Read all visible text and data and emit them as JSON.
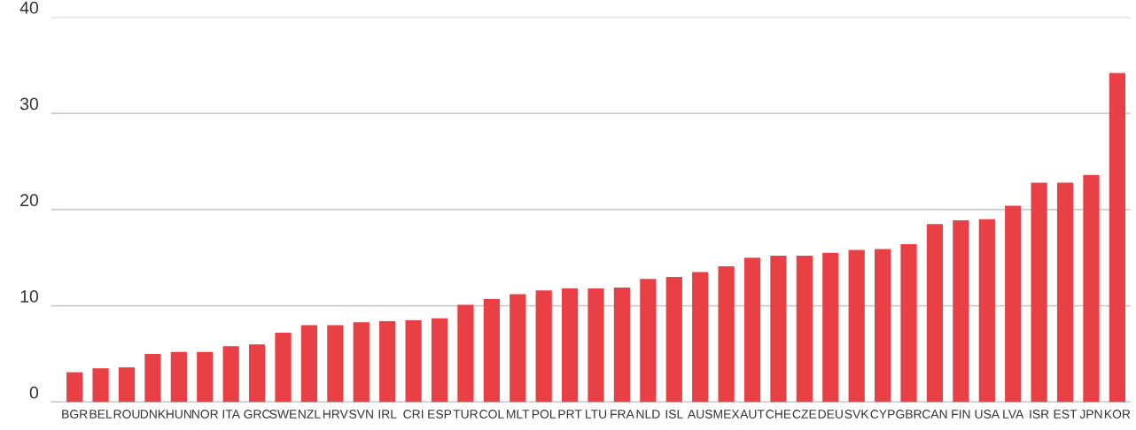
{
  "chart_data": {
    "type": "bar",
    "categories": [
      "BGR",
      "BEL",
      "ROU",
      "DNK",
      "HUN",
      "NOR",
      "ITA",
      "GRC",
      "SWE",
      "NZL",
      "HRV",
      "SVN",
      "IRL",
      "CRI",
      "ESP",
      "TUR",
      "COL",
      "MLT",
      "POL",
      "PRT",
      "LTU",
      "FRA",
      "NLD",
      "ISL",
      "AUS",
      "MEX",
      "AUT",
      "CHE",
      "CZE",
      "DEU",
      "SVK",
      "CYP",
      "GBR",
      "CAN",
      "FIN",
      "USA",
      "LVA",
      "ISR",
      "EST",
      "JPN",
      "KOR"
    ],
    "values": [
      3.1,
      3.5,
      3.6,
      5.0,
      5.2,
      5.2,
      5.8,
      6.0,
      7.2,
      8.0,
      8.0,
      8.3,
      8.4,
      8.5,
      8.7,
      10.1,
      10.7,
      11.2,
      11.6,
      11.8,
      11.8,
      11.9,
      12.8,
      13.0,
      13.5,
      14.1,
      15.0,
      15.2,
      15.2,
      15.5,
      15.8,
      15.9,
      16.4,
      18.5,
      18.9,
      19.0,
      20.4,
      22.8,
      22.8,
      23.6,
      34.2
    ],
    "color": "#e84044",
    "ylim": [
      0,
      40
    ],
    "yticks": [
      0,
      10,
      20,
      30,
      40
    ],
    "grid": "y"
  }
}
